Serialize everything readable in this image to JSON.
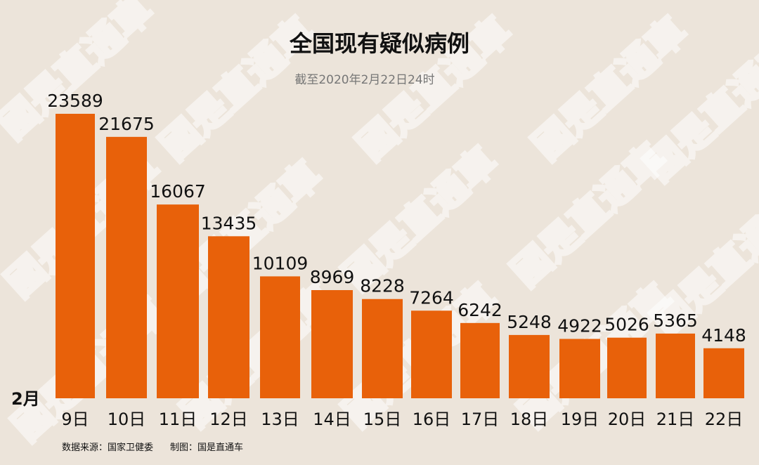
{
  "chart_data": {
    "type": "bar",
    "title": "全国现有疑似病例",
    "subtitle": "截至2020年2月22日24时",
    "month_label": "2月",
    "categories": [
      "9日",
      "10日",
      "11日",
      "12日",
      "13日",
      "14日",
      "15日",
      "16日",
      "17日",
      "18日",
      "19日",
      "20日",
      "21日",
      "22日"
    ],
    "values": [
      23589,
      21675,
      16067,
      13435,
      10109,
      8969,
      8228,
      7264,
      6242,
      5248,
      4922,
      5026,
      5365,
      4148
    ],
    "ylim": [
      0,
      23589
    ],
    "grid": false,
    "legend": "none",
    "colors": {
      "background": "#ECE4DA",
      "bar": "#E8610A",
      "text": "#111111",
      "subtitle": "#777777",
      "watermark": "#FFFFFF"
    },
    "footer": {
      "source": "数据来源：国家卫健委",
      "credit": "制图：国是直通车"
    },
    "watermark": "國是直通車"
  }
}
